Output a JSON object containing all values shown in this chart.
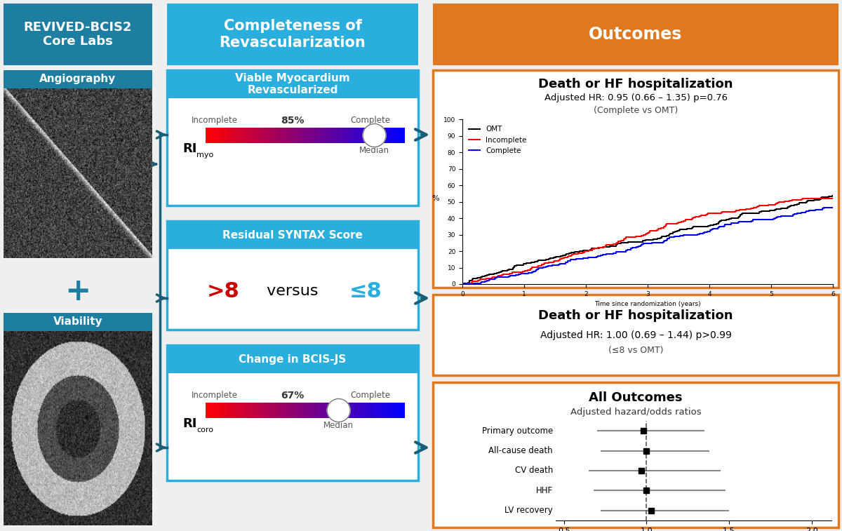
{
  "title_left": "REVIVED-BCIS2\nCore Labs",
  "title_middle": "Completeness of\nRevascularization",
  "title_right": "Outcomes",
  "orange": "#E07820",
  "teal": "#1E7EA1",
  "light_teal": "#29AEDE",
  "dark_teal": "#1B5E78",
  "white": "#FFFFFF",
  "black": "#000000",
  "box1_title": "Viable Myocardium\nRevascularized",
  "box1_pct": "85%",
  "box1_sub1": "Incomplete",
  "box1_sub2": "Complete",
  "box1_ri_sub": "myo",
  "box1_median": "Median",
  "box2_title": "Residual SYNTAX Score",
  "box2_text1": ">8",
  "box2_text2": " versus ",
  "box2_text3": "≤8",
  "box3_title": "Change in BCIS-JS",
  "box3_pct": "67%",
  "box3_sub1": "Incomplete",
  "box3_sub2": "Complete",
  "box3_ri_sub": "coro",
  "box3_median": "Median",
  "angio_label": "Angiography",
  "viability_label": "Viability",
  "km_title": "Death or HF hospitalization",
  "km_hr": "Adjusted HR: 0.95 (0.66 – 1.35) p=0.76",
  "km_sub": "(Complete vs OMT)",
  "km_legend": [
    "OMT",
    "Incomplete",
    "Complete"
  ],
  "km_colors": [
    "#000000",
    "#FF0000",
    "#0000FF"
  ],
  "km_xlabel": "Time since randomization (years)",
  "km_ylabel": "%",
  "syntax_title": "Death or HF hospitalization",
  "syntax_hr": "Adjusted HR: 1.00 (0.69 – 1.44) p>0.99",
  "syntax_sub": "(≤8 vs OMT)",
  "forest_title": "All Outcomes",
  "forest_sub": "Adjusted hazard/odds ratios",
  "forest_outcomes": [
    "Primary outcome",
    "All-cause death",
    "CV death",
    "HHF",
    "LV recovery"
  ],
  "forest_est": [
    0.98,
    1.0,
    0.97,
    1.0,
    1.03
  ],
  "forest_lo": [
    0.7,
    0.72,
    0.65,
    0.68,
    0.72
  ],
  "forest_hi": [
    1.35,
    1.38,
    1.45,
    1.48,
    1.5
  ],
  "bg_color": "#EFEFEF"
}
